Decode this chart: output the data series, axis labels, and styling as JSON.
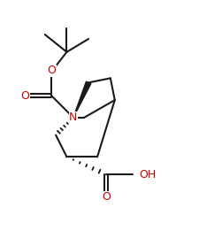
{
  "bg_color": "#ffffff",
  "line_color": "#1a1a1a",
  "atom_colors": {
    "O": "#cc0000",
    "N": "#cc0000"
  },
  "figsize": [
    2.25,
    2.78
  ],
  "dpi": 100
}
